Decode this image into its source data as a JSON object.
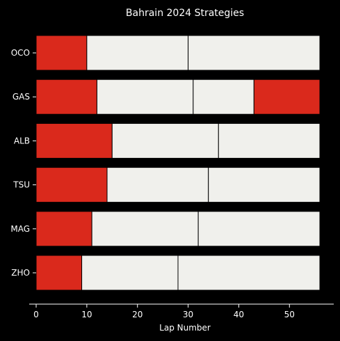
{
  "chart_data": {
    "type": "bar",
    "orientation": "horizontal-stacked",
    "title": "Bahrain 2024 Strategies",
    "xlabel": "Lap Number",
    "ylabel": "",
    "xlim": [
      0,
      59
    ],
    "xticks": [
      0,
      10,
      20,
      30,
      40,
      50
    ],
    "grid": false,
    "categories": [
      "OCO",
      "GAS",
      "ALB",
      "TSU",
      "MAG",
      "ZHO"
    ],
    "stints": [
      {
        "driver": "OCO",
        "segments": [
          {
            "start": 0,
            "end": 10,
            "compound": "soft"
          },
          {
            "start": 10,
            "end": 30,
            "compound": "hard"
          },
          {
            "start": 30,
            "end": 56,
            "compound": "hard"
          }
        ]
      },
      {
        "driver": "GAS",
        "segments": [
          {
            "start": 0,
            "end": 12,
            "compound": "soft"
          },
          {
            "start": 12,
            "end": 31,
            "compound": "hard"
          },
          {
            "start": 31,
            "end": 43,
            "compound": "hard"
          },
          {
            "start": 43,
            "end": 56,
            "compound": "soft"
          }
        ]
      },
      {
        "driver": "ALB",
        "segments": [
          {
            "start": 0,
            "end": 15,
            "compound": "soft"
          },
          {
            "start": 15,
            "end": 36,
            "compound": "hard"
          },
          {
            "start": 36,
            "end": 56,
            "compound": "hard"
          }
        ]
      },
      {
        "driver": "TSU",
        "segments": [
          {
            "start": 0,
            "end": 14,
            "compound": "soft"
          },
          {
            "start": 14,
            "end": 34,
            "compound": "hard"
          },
          {
            "start": 34,
            "end": 56,
            "compound": "hard"
          }
        ]
      },
      {
        "driver": "MAG",
        "segments": [
          {
            "start": 0,
            "end": 11,
            "compound": "soft"
          },
          {
            "start": 11,
            "end": 32,
            "compound": "hard"
          },
          {
            "start": 32,
            "end": 56,
            "compound": "hard"
          }
        ]
      },
      {
        "driver": "ZHO",
        "segments": [
          {
            "start": 0,
            "end": 9,
            "compound": "soft"
          },
          {
            "start": 9,
            "end": 28,
            "compound": "hard"
          },
          {
            "start": 28,
            "end": 56,
            "compound": "hard"
          }
        ]
      }
    ],
    "colors": {
      "soft": "#da291c",
      "hard": "#f0f0ec",
      "background": "#000000",
      "text": "#ffffff",
      "segment_edge": "#000000"
    }
  }
}
